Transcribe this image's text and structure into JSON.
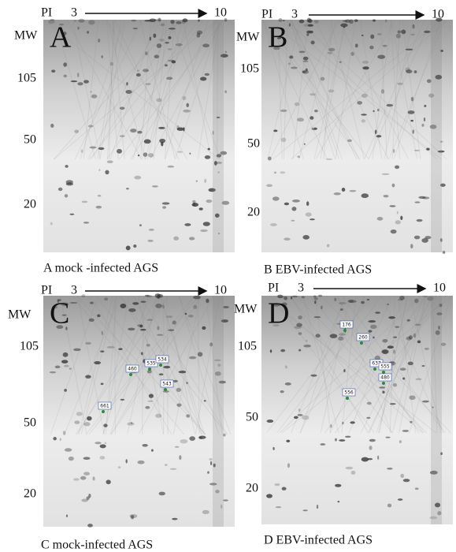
{
  "panels": [
    {
      "letter": "A",
      "pi_label": "PI",
      "pi_start": "3",
      "pi_end": "10",
      "mw_label": "MW",
      "mw_markers": [
        "105",
        "50",
        "20"
      ],
      "caption": "A mock -infected AGS",
      "spots": []
    },
    {
      "letter": "B",
      "pi_label": "PI",
      "pi_start": "3",
      "pi_end": "10",
      "mw_label": "MW",
      "mw_markers": [
        "105",
        "50",
        "20"
      ],
      "caption": "B EBV-infected AGS",
      "spots": []
    },
    {
      "letter": "C",
      "pi_label": "PI",
      "pi_start": "3",
      "pi_end": "10",
      "mw_label": "MW",
      "mw_markers": [
        "105",
        "50",
        "20"
      ],
      "caption": "C mock-infected AGS",
      "spots": [
        "460",
        "535",
        "534",
        "543",
        "661"
      ]
    },
    {
      "letter": "D",
      "pi_label": "PI",
      "pi_start": "3",
      "pi_end": "10",
      "mw_label": "MW",
      "mw_markers": [
        "105",
        "50",
        "20"
      ],
      "caption": "D EBV-infected AGS",
      "spots": [
        "176",
        "260",
        "637",
        "555",
        "480",
        "556"
      ]
    }
  ]
}
